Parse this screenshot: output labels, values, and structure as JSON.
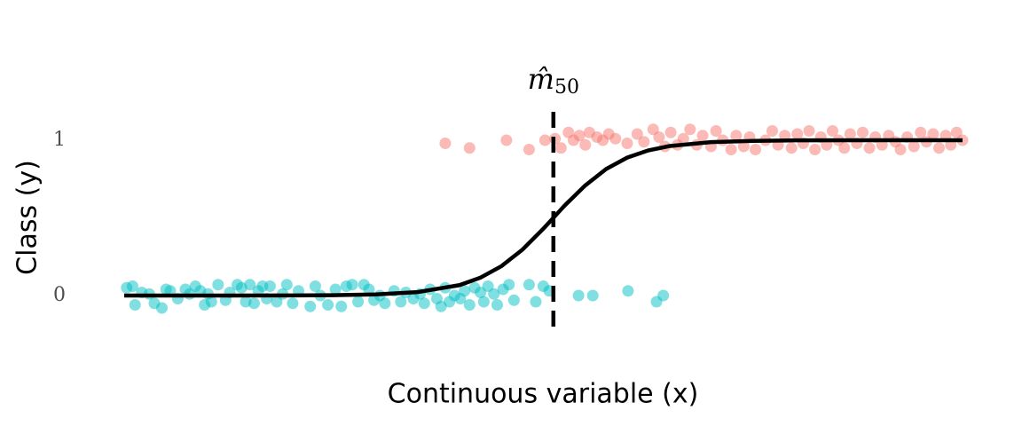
{
  "chart_data": {
    "type": "scatter",
    "xlabel": "Continuous variable (x)",
    "ylabel": "Class (y)",
    "xlim": [
      -3,
      103
    ],
    "ylim": [
      -0.4,
      1.6
    ],
    "yticks": [
      0,
      1
    ],
    "series": [
      {
        "style": "points",
        "color": "#00bfc4",
        "x": [
          0.3,
          1,
          1.3,
          2.1,
          3,
          3.6,
          4.5,
          5,
          5.5,
          6.4,
          7.3,
          7.8,
          8.5,
          9.1,
          9.6,
          10,
          10.4,
          11.2,
          12.1,
          12.6,
          13.5,
          14,
          14.5,
          15,
          15.5,
          16,
          16.5,
          17,
          17.4,
          18.2,
          18.9,
          19.4,
          20.1,
          20.8,
          22.2,
          22.8,
          23.4,
          24.3,
          25.2,
          25.9,
          26.5,
          27.2,
          27.9,
          28.6,
          29.2,
          29.8,
          30.5,
          31.1,
          32.2,
          33,
          33.6,
          34.5,
          35.3,
          35.8,
          36.5,
          37.3,
          37.8,
          38.3,
          38.8,
          39.4,
          40.1,
          40.6,
          41.2,
          41.8,
          42.5,
          42.9,
          43.4,
          44.1,
          44.5,
          45.2,
          45.9,
          46.5,
          48.3,
          49.1,
          50,
          50.7,
          54.2,
          55.9,
          60.1,
          63.5,
          64.3
        ],
        "values": [
          0.05,
          0.06,
          -0.06,
          0.02,
          0.01,
          -0.05,
          -0.08,
          0.04,
          0.03,
          -0.02,
          0.04,
          0.01,
          0.06,
          0.03,
          -0.06,
          0.01,
          -0.04,
          0.07,
          -0.03,
          0.02,
          0.07,
          0.05,
          -0.04,
          0.07,
          -0.05,
          0.03,
          0.06,
          -0.02,
          0.06,
          -0.04,
          0.01,
          0.07,
          -0.05,
          0.03,
          -0.07,
          0.06,
          0,
          -0.06,
          0.04,
          -0.07,
          0.06,
          0.07,
          -0.04,
          0.07,
          0.04,
          -0.03,
          0,
          -0.05,
          0.03,
          -0.04,
          0.02,
          -0.02,
          0.01,
          -0.05,
          0.04,
          -0.02,
          -0.07,
          0.05,
          -0.04,
          0,
          -0.02,
          0.03,
          -0.06,
          0.05,
          0.02,
          -0.04,
          0.06,
          0.01,
          -0.06,
          0.04,
          0.07,
          -0.03,
          0.07,
          -0.04,
          0.06,
          0.03,
          0,
          0,
          0.03,
          -0.04,
          0
        ]
      },
      {
        "style": "points",
        "color": "#f8766d",
        "x": [
          38.3,
          41.2,
          45.6,
          48.3,
          50.2,
          51.4,
          52.1,
          53,
          53.6,
          54.3,
          55,
          55.5,
          56.4,
          57.1,
          57.8,
          58.6,
          60,
          61.2,
          62,
          63.1,
          63.8,
          64.5,
          65.2,
          66,
          66.7,
          67.5,
          68.3,
          69,
          70,
          70.6,
          71.4,
          72.4,
          73,
          73.9,
          74.6,
          75.3,
          76.5,
          77.3,
          78,
          78.8,
          79.6,
          80.3,
          81,
          81.7,
          82.4,
          83.1,
          83.8,
          84.5,
          85.2,
          85.9,
          86.6,
          87.4,
          88.1,
          88.9,
          89.6,
          90.4,
          91.2,
          92,
          92.6,
          93.4,
          94.2,
          95,
          95.7,
          96.5,
          97.2,
          98,
          98.6,
          99.3,
          100
        ],
        "values": [
          0.98,
          0.95,
          1,
          0.94,
          1,
          1.01,
          0.95,
          1.05,
          1,
          1.03,
          0.97,
          1.05,
          1.02,
          1,
          1.04,
          1.01,
          0.98,
          1.04,
          0.99,
          1.07,
          1.02,
          0.96,
          1.05,
          0.97,
          1.01,
          1.07,
          0.97,
          1.03,
          0.96,
          1.06,
          1,
          0.94,
          1.03,
          0.96,
          1.02,
          0.94,
          1,
          1.06,
          0.97,
          1.03,
          0.95,
          1.04,
          0.98,
          1.06,
          0.94,
          1.02,
          0.97,
          1.06,
          1,
          0.95,
          1.04,
          0.98,
          1.05,
          0.95,
          1.02,
          0.97,
          1.03,
          0.99,
          0.94,
          1.02,
          0.96,
          1.05,
          0.99,
          1.04,
          0.95,
          1.03,
          0.97,
          1.05,
          1
        ]
      },
      {
        "style": "line",
        "color": "#000000",
        "x": [
          0,
          10,
          20,
          25,
          30,
          35,
          40,
          42.5,
          45,
          47.5,
          50,
          52.5,
          55,
          57.5,
          60,
          62.5,
          65,
          70,
          75,
          80,
          90,
          100
        ],
        "values": [
          0,
          0.0001,
          0.0007,
          0.002,
          0.007,
          0.022,
          0.067,
          0.115,
          0.189,
          0.295,
          0.43,
          0.577,
          0.709,
          0.815,
          0.888,
          0.934,
          0.962,
          0.988,
          0.996,
          0.999,
          1,
          1
        ]
      }
    ],
    "vline": {
      "x": 51.2,
      "y": [
        -0.2,
        1.2
      ],
      "color": "#000000",
      "label": "m̂",
      "label_subscript": "50"
    }
  }
}
